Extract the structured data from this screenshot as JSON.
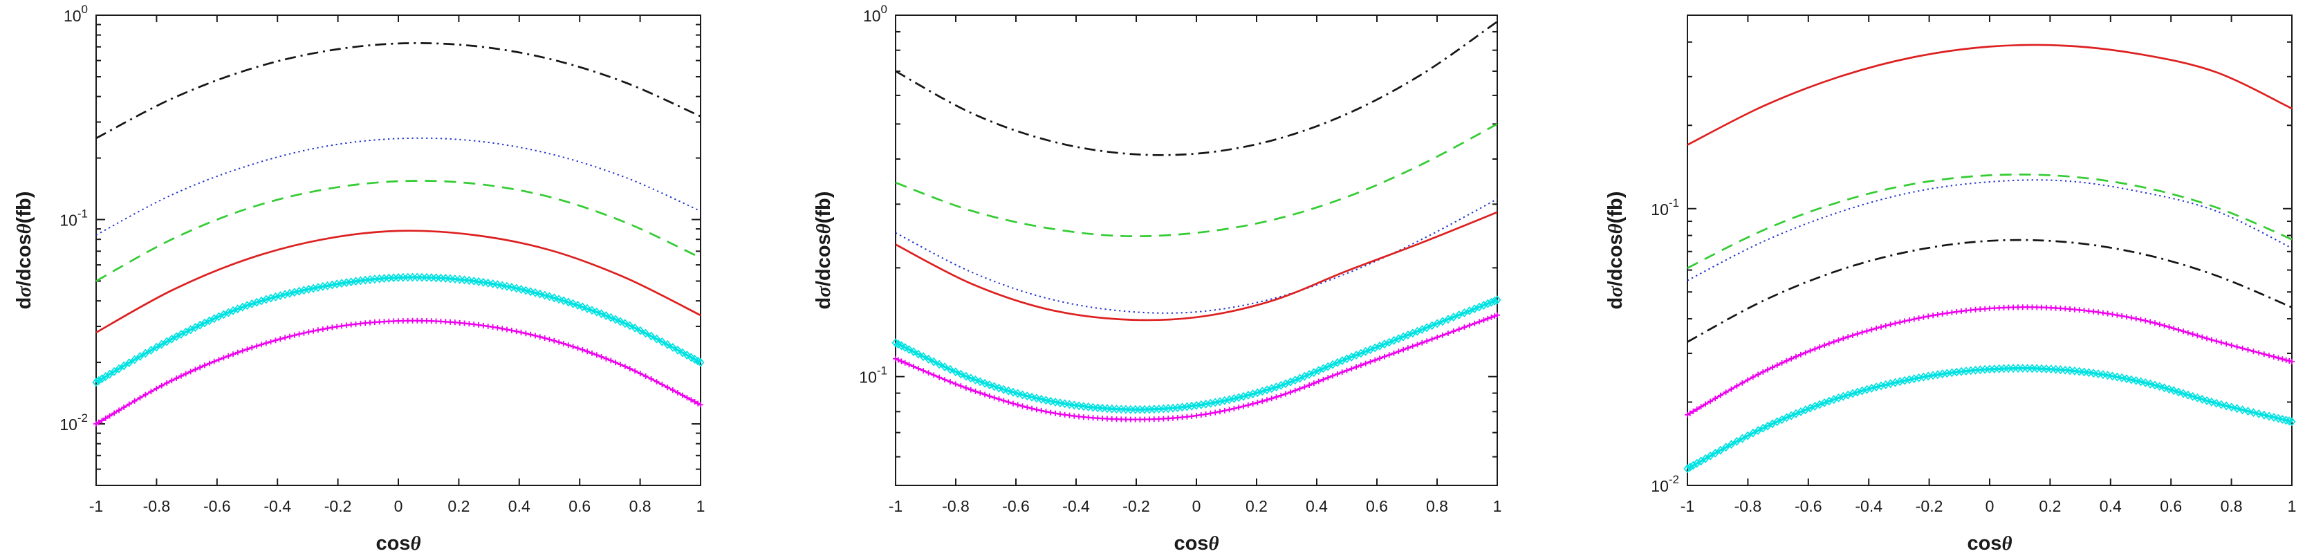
{
  "figure": {
    "xlabel_parts": [
      {
        "t": "cos",
        "greek": false
      },
      {
        "t": "θ",
        "greek": true
      }
    ],
    "ylabel_parts": [
      {
        "t": "d",
        "greek": false
      },
      {
        "t": "σ",
        "greek": true
      },
      {
        "t": "/dcos",
        "greek": false
      },
      {
        "t": "θ",
        "greek": true
      },
      {
        "t": "(fb)",
        "greek": false
      }
    ],
    "x_tick_labels": [
      "-1",
      "-0.8",
      "-0.6",
      "-0.4",
      "-0.2",
      "0",
      "0.2",
      "0.4",
      "0.6",
      "0.8",
      "1"
    ],
    "colors": {
      "black": "#151515",
      "blue": "#2233cc",
      "green": "#33cc33",
      "red": "#dd2020",
      "cyan": "#00e2e2",
      "magenta": "#ee00ee",
      "axis": "#1a1a1a"
    }
  },
  "chart_data": [
    {
      "type": "line",
      "panel": "left",
      "title": "",
      "xlabel": "cosθ",
      "ylabel": "dσ/dcosθ(fb)",
      "xlim": [
        -1,
        1
      ],
      "ylim": [
        0.005,
        1
      ],
      "yscale": "log",
      "grid": false,
      "legend": "none",
      "y_major_tick_exponents": [
        0,
        -1,
        -2
      ],
      "x": [
        -1,
        -0.75,
        -0.5,
        -0.25,
        0,
        0.25,
        0.5,
        0.75,
        1
      ],
      "series": [
        {
          "name": "black-dashdot",
          "color": "black",
          "style": "dashdot",
          "values": [
            0.25,
            0.39,
            0.54,
            0.664,
            0.727,
            0.707,
            0.611,
            0.469,
            0.32
          ]
        },
        {
          "name": "blue-dotted",
          "color": "blue",
          "style": "dotted",
          "values": [
            0.084,
            0.132,
            0.183,
            0.227,
            0.249,
            0.243,
            0.21,
            0.161,
            0.11
          ]
        },
        {
          "name": "green-dashed",
          "color": "green",
          "style": "dashed",
          "values": [
            0.05,
            0.08,
            0.113,
            0.14,
            0.154,
            0.15,
            0.129,
            0.097,
            0.065
          ]
        },
        {
          "name": "red-solid",
          "color": "red",
          "style": "solid",
          "values": [
            0.028,
            0.045,
            0.064,
            0.08,
            0.088,
            0.084,
            0.071,
            0.052,
            0.034
          ]
        },
        {
          "name": "cyan-diamond-band",
          "color": "cyan",
          "style": "diamond",
          "values": [
            0.016,
            0.026,
            0.038,
            0.047,
            0.052,
            0.05,
            0.042,
            0.031,
            0.02
          ]
        },
        {
          "name": "magenta-plus-band",
          "color": "magenta",
          "style": "plus",
          "values": [
            0.01,
            0.0163,
            0.0232,
            0.0291,
            0.0319,
            0.0307,
            0.0259,
            0.0191,
            0.0124
          ]
        }
      ]
    },
    {
      "type": "line",
      "panel": "center",
      "title": "",
      "xlabel": "cosθ",
      "ylabel": "dσ/dcosθ(fb)",
      "xlim": [
        -1,
        1
      ],
      "ylim": [
        0.05,
        1
      ],
      "yscale": "log",
      "grid": false,
      "legend": "none",
      "y_major_tick_exponents": [
        0,
        -1
      ],
      "x": [
        -1,
        -0.75,
        -0.5,
        -0.25,
        0,
        0.25,
        0.5,
        0.75,
        1
      ],
      "series": [
        {
          "name": "black-dashdot",
          "color": "black",
          "style": "dashdot",
          "values": [
            0.7,
            0.537,
            0.452,
            0.415,
            0.414,
            0.45,
            0.533,
            0.687,
            0.96
          ]
        },
        {
          "name": "green-dashed",
          "color": "green",
          "style": "dashed",
          "values": [
            0.344,
            0.288,
            0.258,
            0.245,
            0.25,
            0.271,
            0.314,
            0.387,
            0.5
          ]
        },
        {
          "name": "blue-dotted",
          "color": "blue",
          "style": "dotted",
          "values": [
            0.25,
            0.195,
            0.165,
            0.152,
            0.151,
            0.164,
            0.193,
            0.24,
            0.31
          ]
        },
        {
          "name": "red-solid",
          "color": "red",
          "style": "solid",
          "values": [
            0.232,
            0.181,
            0.154,
            0.144,
            0.146,
            0.162,
            0.196,
            0.235,
            0.285
          ]
        },
        {
          "name": "cyan-diamond-band",
          "color": "cyan",
          "style": "diamond",
          "values": [
            0.124,
            0.099,
            0.086,
            0.0812,
            0.0832,
            0.0927,
            0.112,
            0.135,
            0.163
          ]
        },
        {
          "name": "magenta-plus-band",
          "color": "magenta",
          "style": "plus",
          "values": [
            0.112,
            0.092,
            0.08,
            0.0762,
            0.078,
            0.087,
            0.104,
            0.124,
            0.148
          ]
        }
      ]
    },
    {
      "type": "line",
      "panel": "right",
      "title": "",
      "xlabel": "cosθ",
      "ylabel": "dσ/dcosθ(fb)",
      "xlim": [
        -1,
        1
      ],
      "ylim": [
        0.01,
        0.5
      ],
      "yscale": "log",
      "grid": false,
      "legend": "none",
      "y_major_tick_exponents": [
        -1,
        -2
      ],
      "x": [
        -1,
        -0.75,
        -0.5,
        -0.25,
        0,
        0.25,
        0.5,
        0.75,
        1
      ],
      "series": [
        {
          "name": "red-solid",
          "color": "red",
          "style": "solid",
          "values": [
            0.17,
            0.2345,
            0.299,
            0.353,
            0.385,
            0.388,
            0.361,
            0.311,
            0.23
          ]
        },
        {
          "name": "green-dashed",
          "color": "green",
          "style": "dashed",
          "values": [
            0.061,
            0.0835,
            0.1055,
            0.123,
            0.132,
            0.131,
            0.12,
            0.101,
            0.0775
          ]
        },
        {
          "name": "blue-dotted",
          "color": "blue",
          "style": "dotted",
          "values": [
            0.055,
            0.076,
            0.097,
            0.115,
            0.125,
            0.126,
            0.115,
            0.098,
            0.072
          ]
        },
        {
          "name": "black-dashdot",
          "color": "black",
          "style": "dashdot",
          "values": [
            0.033,
            0.0464,
            0.0598,
            0.0706,
            0.0765,
            0.0758,
            0.0688,
            0.0573,
            0.044
          ]
        },
        {
          "name": "magenta-plus-band",
          "color": "magenta",
          "style": "plus",
          "values": [
            0.018,
            0.0257,
            0.0335,
            0.0399,
            0.0436,
            0.0435,
            0.0397,
            0.0332,
            0.028
          ]
        },
        {
          "name": "cyan-diamond-band",
          "color": "cyan",
          "style": "diamond",
          "values": [
            0.0115,
            0.0161,
            0.0207,
            0.0243,
            0.0263,
            0.0261,
            0.0237,
            0.0198,
            0.017
          ]
        }
      ]
    }
  ]
}
